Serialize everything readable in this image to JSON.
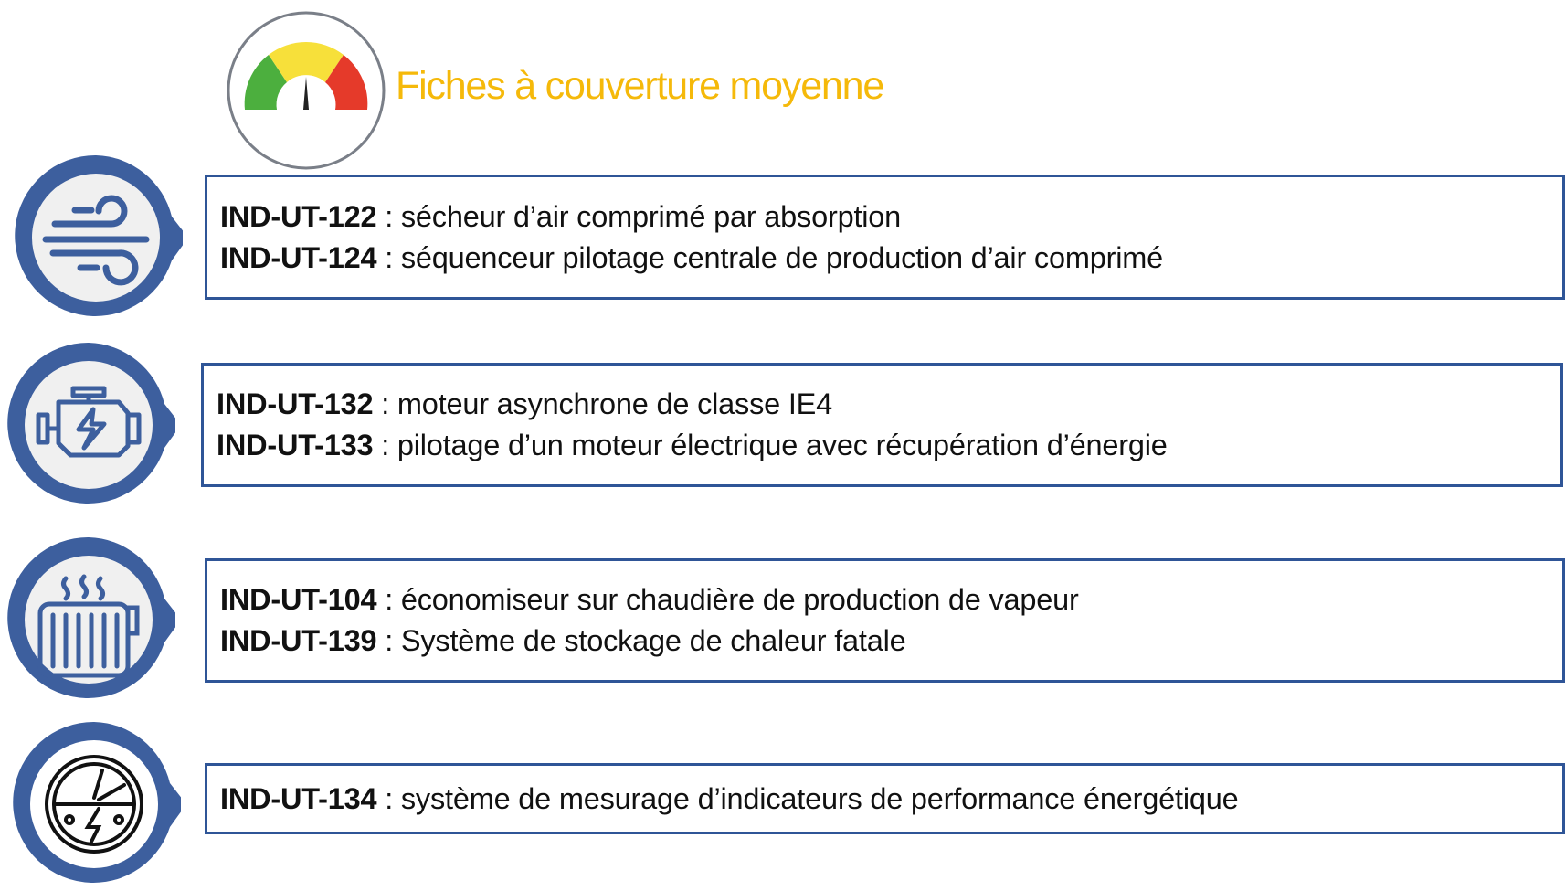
{
  "header": {
    "title": "Fiches à couverture moyenne",
    "icon": "gauge-icon"
  },
  "colors": {
    "title": "#f5b90a",
    "accent": "#3d5f9e",
    "border": "#2f5597",
    "gauge_green": "#4caf3e",
    "gauge_yellow": "#f7e03a",
    "gauge_red": "#e53a2a"
  },
  "rows": [
    {
      "icon": "compressed-air-icon",
      "items": [
        {
          "code": "IND-UT-122",
          "sep": " : ",
          "text": "sécheur d’air comprimé par absorption"
        },
        {
          "code": "IND-UT-124",
          "sep": " : ",
          "text": "séquenceur pilotage centrale de production d’air comprimé"
        }
      ]
    },
    {
      "icon": "electric-motor-icon",
      "items": [
        {
          "code": "IND-UT-132",
          "sep": " : ",
          "text": "moteur asynchrone de classe IE4"
        },
        {
          "code": "IND-UT-133",
          "sep": " : ",
          "text": "pilotage d’un moteur électrique avec récupération d’énergie"
        }
      ]
    },
    {
      "icon": "radiator-heat-icon",
      "items": [
        {
          "code": "IND-UT-104",
          "sep": " : ",
          "text": "économiseur sur chaudière de production de vapeur"
        },
        {
          "code": "IND-UT-139",
          "sep": " : ",
          "text": "Système de stockage de chaleur fatale"
        }
      ]
    },
    {
      "icon": "energy-meter-icon",
      "items": [
        {
          "code": "IND-UT-134",
          "sep": " : ",
          "text": "système de mesurage d’indicateurs de performance énergétique"
        }
      ]
    }
  ]
}
